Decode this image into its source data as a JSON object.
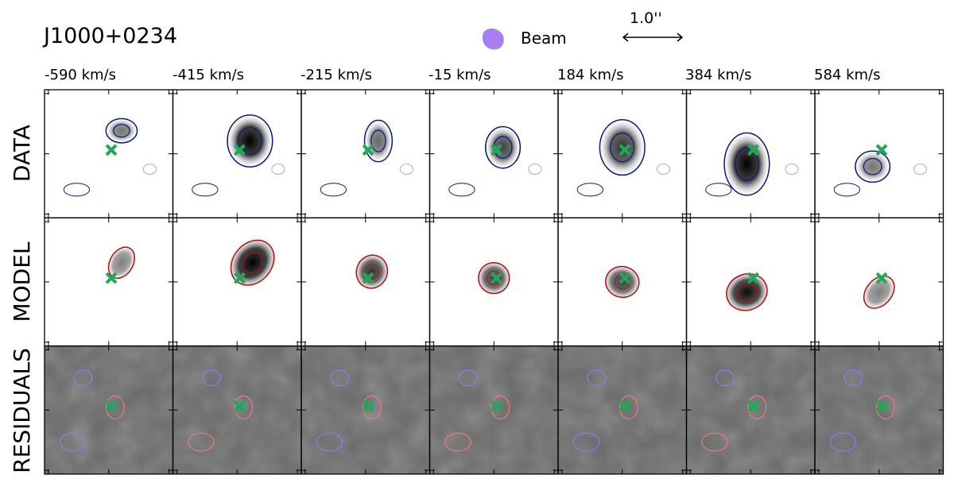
{
  "figure": {
    "title": "J1000+0234",
    "legend": {
      "beam_label": "Beam",
      "beam_color": "#a87ef0",
      "scale_label": "1.0''"
    },
    "velocities": [
      "-590 km/s",
      "-415 km/s",
      "-215 km/s",
      "-15 km/s",
      "184 km/s",
      "384 km/s",
      "584 km/s"
    ],
    "rows": [
      "DATA",
      "MODEL",
      "RESIDUALS"
    ],
    "colors": {
      "data_contour": "#0a1a7a",
      "negative_contour": "#b0b0b0",
      "model_contour": "#b01010",
      "residual_positive": "#f07878",
      "residual_negative": "#8080f0",
      "marker": "#1fa85a",
      "residual_background": "#6a6a6a"
    }
  }
}
